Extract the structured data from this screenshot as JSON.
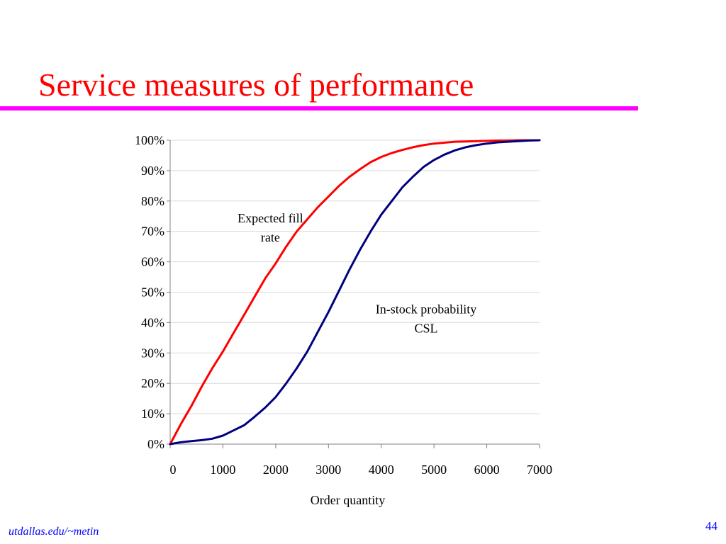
{
  "slide": {
    "title": "Service measures of performance",
    "footer": "utdallas.edu/~metin",
    "page_number": "44"
  },
  "colors": {
    "title": "#ff0000",
    "rule": "#ff00ff",
    "footer": "#0000ff",
    "page_number": "#0000ff",
    "fill_rate": "#ff0000",
    "csl": "#000080",
    "grid": "#d9d9d9",
    "axis": "#808080",
    "text": "#000000"
  },
  "chart_data": {
    "type": "line",
    "title": "",
    "xlabel": "Order quantity",
    "ylabel": "",
    "xlim": [
      0,
      7000
    ],
    "ylim": [
      0,
      1
    ],
    "x_ticks": [
      0,
      1000,
      2000,
      3000,
      4000,
      5000,
      6000,
      7000
    ],
    "x_tick_labels": [
      "0",
      "1000",
      "2000",
      "3000",
      "4000",
      "5000",
      "6000",
      "7000"
    ],
    "y_ticks": [
      0,
      0.1,
      0.2,
      0.3,
      0.4,
      0.5,
      0.6,
      0.7,
      0.8,
      0.9,
      1.0
    ],
    "y_tick_labels": [
      "0%",
      "10%",
      "20%",
      "30%",
      "40%",
      "50%",
      "60%",
      "70%",
      "80%",
      "90%",
      "100%"
    ],
    "grid": "horizontal",
    "legend": "none",
    "series": [
      {
        "key": "fill_rate",
        "x": [
          0,
          200,
          400,
          600,
          800,
          1000,
          1200,
          1400,
          1600,
          1800,
          2000,
          2200,
          2400,
          2600,
          2800,
          3000,
          3200,
          3400,
          3600,
          3800,
          4000,
          4200,
          4400,
          4600,
          4800,
          5000,
          5200,
          5400,
          5600,
          5800,
          6000,
          6200,
          6400,
          6600,
          6800,
          7000
        ],
        "y": [
          0.0,
          0.065,
          0.125,
          0.19,
          0.25,
          0.305,
          0.365,
          0.425,
          0.485,
          0.545,
          0.595,
          0.65,
          0.7,
          0.74,
          0.78,
          0.815,
          0.85,
          0.88,
          0.905,
          0.928,
          0.945,
          0.958,
          0.968,
          0.977,
          0.984,
          0.989,
          0.992,
          0.995,
          0.996,
          0.997,
          0.998,
          0.999,
          0.999,
          1.0,
          1.0,
          1.0
        ]
      },
      {
        "key": "csl",
        "x": [
          0,
          200,
          400,
          600,
          800,
          1000,
          1200,
          1400,
          1600,
          1800,
          2000,
          2200,
          2400,
          2600,
          2800,
          3000,
          3200,
          3400,
          3600,
          3800,
          4000,
          4200,
          4400,
          4600,
          4800,
          5000,
          5200,
          5400,
          5600,
          5800,
          6000,
          6200,
          6400,
          6600,
          6800,
          7000
        ],
        "y": [
          0.0,
          0.006,
          0.01,
          0.013,
          0.018,
          0.028,
          0.045,
          0.062,
          0.09,
          0.12,
          0.155,
          0.2,
          0.25,
          0.305,
          0.37,
          0.435,
          0.505,
          0.575,
          0.64,
          0.7,
          0.755,
          0.8,
          0.845,
          0.88,
          0.912,
          0.935,
          0.953,
          0.967,
          0.977,
          0.984,
          0.989,
          0.993,
          0.995,
          0.997,
          0.999,
          1.0
        ]
      }
    ],
    "annotations": [
      {
        "series": "fill_rate",
        "lines": [
          "Expected fill",
          "rate"
        ],
        "x": 1900,
        "y": 0.73
      },
      {
        "series": "csl",
        "lines": [
          "In-stock probability",
          "CSL"
        ],
        "x": 4850,
        "y": 0.43
      }
    ]
  }
}
